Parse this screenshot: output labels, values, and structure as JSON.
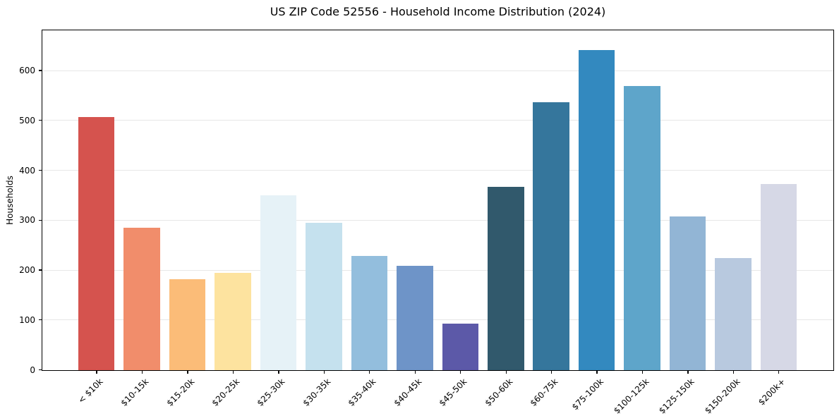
{
  "title": "US ZIP Code 52556 - Household Income Distribution (2024)",
  "chart_data": {
    "type": "bar",
    "title": "US ZIP Code 52556 - Household Income Distribution (2024)",
    "xlabel": "",
    "ylabel": "Households",
    "categories": [
      "< $10k",
      "$10-15k",
      "$15-20k",
      "$20-25k",
      "$25-30k",
      "$30-35k",
      "$35-40k",
      "$40-45k",
      "$45-50k",
      "$50-60k",
      "$60-75k",
      "$75-100k",
      "$100-125k",
      "$125-150k",
      "$150-200k",
      "$200k+"
    ],
    "values": [
      507,
      285,
      183,
      195,
      351,
      295,
      229,
      209,
      93,
      367,
      537,
      642,
      570,
      308,
      225,
      373
    ],
    "bar_colors": [
      "#d5534e",
      "#f18d6b",
      "#fbbc78",
      "#fde39f",
      "#e6f2f7",
      "#c5e1ee",
      "#93bedd",
      "#6e94c8",
      "#5c59a8",
      "#31596c",
      "#35769c",
      "#3389bf",
      "#5ea5ca",
      "#92b5d5",
      "#b8c9df",
      "#d6d8e6"
    ],
    "ylim": [
      0,
      680
    ],
    "yticks": [
      0,
      100,
      200,
      300,
      400,
      500,
      600
    ],
    "grid": "horizontal",
    "gridline_color": "#e7e7e7",
    "axis_color": "#000000",
    "legend": "none"
  }
}
